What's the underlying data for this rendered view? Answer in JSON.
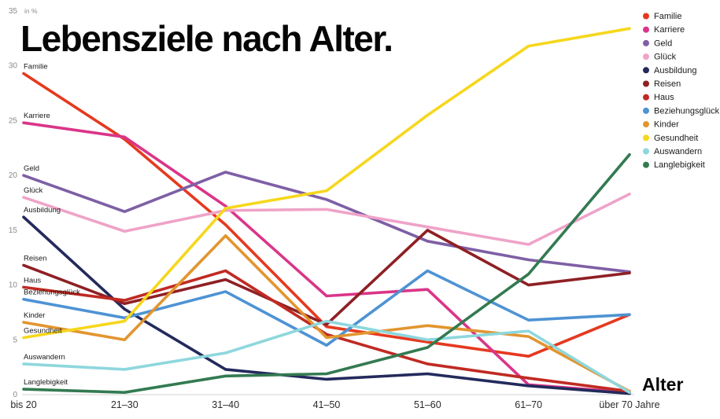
{
  "chart_data": {
    "type": "line",
    "title": "Lebensziele nach Alter.",
    "xlabel": "Alter",
    "ylabel": "in %",
    "ylim": [
      0,
      35
    ],
    "y_ticks": [
      0,
      5,
      10,
      15,
      20,
      25,
      30,
      35
    ],
    "grid": false,
    "legend_position": "top-right",
    "categories": [
      "bis 20",
      "21–30",
      "31–40",
      "41–50",
      "51–60",
      "61–70",
      "über 70 Jahre"
    ],
    "series": [
      {
        "name": "Familie",
        "color": "#e5391f",
        "values": [
          29.3,
          23.3,
          15.5,
          6.2,
          4.8,
          3.5,
          7.3
        ]
      },
      {
        "name": "Karriere",
        "color": "#da3589",
        "values": [
          24.8,
          23.5,
          17.2,
          9.0,
          9.6,
          0.9,
          0.2
        ]
      },
      {
        "name": "Geld",
        "color": "#7e5fa5",
        "values": [
          20.0,
          16.7,
          20.3,
          17.8,
          14.0,
          12.3,
          11.2
        ]
      },
      {
        "name": "Glück",
        "color": "#efa3c8",
        "values": [
          18.0,
          14.9,
          16.8,
          16.9,
          15.3,
          13.7,
          18.3
        ]
      },
      {
        "name": "Ausbildung",
        "color": "#232a5c",
        "values": [
          16.2,
          7.8,
          2.3,
          1.4,
          1.9,
          0.8,
          0.1
        ]
      },
      {
        "name": "Reisen",
        "color": "#8e2024",
        "values": [
          11.8,
          8.3,
          10.5,
          6.4,
          15.0,
          10.0,
          11.1
        ]
      },
      {
        "name": "Haus",
        "color": "#c02a22",
        "values": [
          9.8,
          8.6,
          11.3,
          5.5,
          2.8,
          1.5,
          0.3
        ]
      },
      {
        "name": "Beziehungsglück",
        "color": "#4e93d4",
        "values": [
          8.7,
          7.0,
          9.4,
          4.5,
          11.3,
          6.8,
          7.3
        ]
      },
      {
        "name": "Kinder",
        "color": "#e2952f",
        "values": [
          6.6,
          5.0,
          14.5,
          5.2,
          6.3,
          5.3,
          0.3
        ]
      },
      {
        "name": "Gesundheit",
        "color": "#f6d71d",
        "values": [
          5.2,
          6.7,
          17.0,
          18.6,
          25.5,
          31.8,
          33.4
        ]
      },
      {
        "name": "Auswandern",
        "color": "#8ed7dd",
        "values": [
          2.8,
          2.3,
          3.8,
          6.7,
          5.0,
          5.8,
          0.2
        ]
      },
      {
        "name": "Langlebigkeit",
        "color": "#337a51",
        "values": [
          0.5,
          0.2,
          1.7,
          1.9,
          4.3,
          11.0,
          21.9
        ]
      }
    ]
  }
}
